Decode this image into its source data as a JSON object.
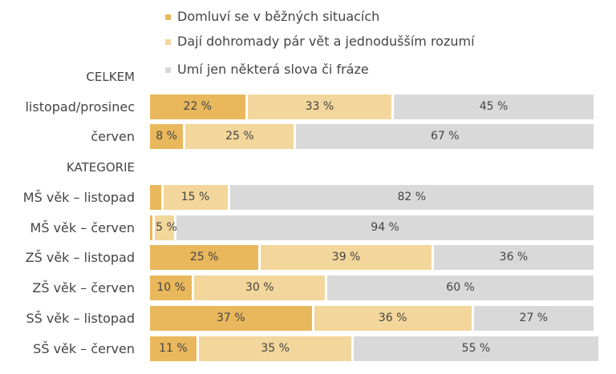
{
  "chart_data": {
    "type": "bar",
    "orientation": "horizontal",
    "stacked": true,
    "title": "",
    "xlabel": "",
    "ylabel": "",
    "xlim": [
      0,
      100
    ],
    "legend_position": "top",
    "series": [
      {
        "name": "Domluví se v běžných situacích",
        "color": "#E9B75C"
      },
      {
        "name": "Dají dohromady pár vět a jednodušším rozumí",
        "color": "#F3D69B"
      },
      {
        "name": "Umí jen některá slova či fráze",
        "color": "#D9D9D9"
      }
    ],
    "groups": [
      {
        "label": "CELKEM",
        "rows": [
          {
            "category": "listopad/prosinec",
            "values": [
              22,
              33,
              45
            ],
            "labels": [
              "22 %",
              "33 %",
              "45 %"
            ]
          },
          {
            "category": "červen",
            "values": [
              8,
              25,
              67
            ],
            "labels": [
              "8 %",
              "25 %",
              "67 %"
            ]
          }
        ]
      },
      {
        "label": "KATEGORIE",
        "rows": [
          {
            "category": "MŠ věk – listopad",
            "values": [
              3,
              15,
              82
            ],
            "labels": [
              "",
              "15 %",
              "82 %"
            ]
          },
          {
            "category": "MŠ věk – červen",
            "values": [
              1,
              5,
              94
            ],
            "labels": [
              "",
              "5 %",
              "94 %"
            ]
          },
          {
            "category": "ZŠ věk – listopad",
            "values": [
              25,
              39,
              36
            ],
            "labels": [
              "25 %",
              "39 %",
              "36 %"
            ]
          },
          {
            "category": "ZŠ věk – červen",
            "values": [
              10,
              30,
              60
            ],
            "labels": [
              "10 %",
              "30 %",
              "60 %"
            ]
          },
          {
            "category": "SŠ věk – listopad",
            "values": [
              37,
              36,
              27
            ],
            "labels": [
              "37 %",
              "36 %",
              "27 %"
            ]
          },
          {
            "category": "SŠ věk – červen",
            "values": [
              11,
              35,
              55
            ],
            "labels": [
              "11 %",
              "35 %",
              "55 %"
            ]
          }
        ]
      }
    ]
  }
}
